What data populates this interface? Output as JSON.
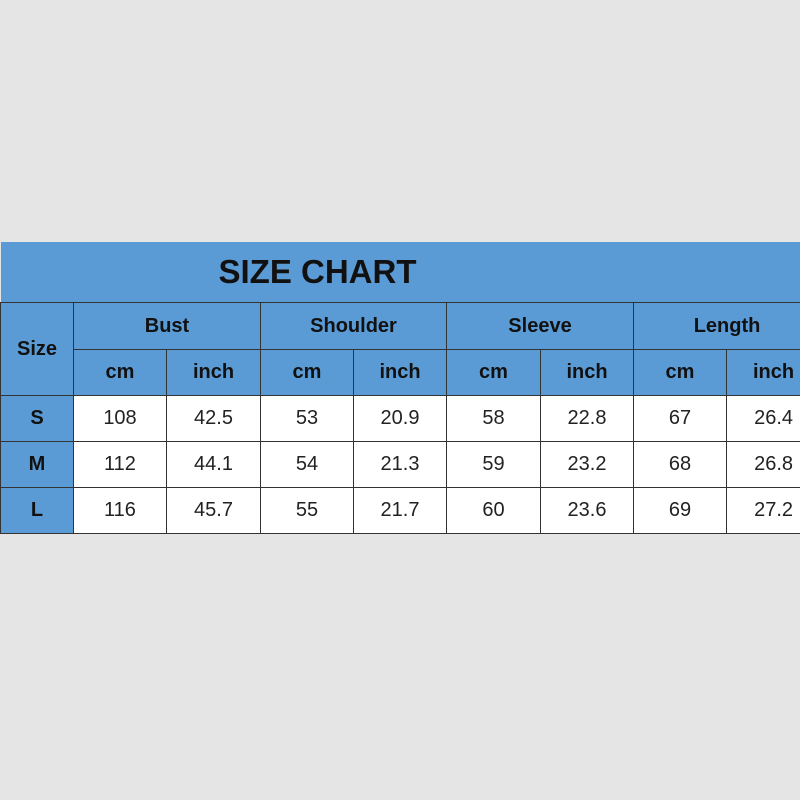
{
  "title": "SIZE CHART",
  "size_header": "Size",
  "groups": [
    "Bust",
    "Shoulder",
    "Sleeve",
    "Length"
  ],
  "units": [
    "cm",
    "inch"
  ],
  "rows": [
    {
      "size": "S",
      "values": [
        "108",
        "42.5",
        "53",
        "20.9",
        "58",
        "22.8",
        "67",
        "26.4"
      ]
    },
    {
      "size": "M",
      "values": [
        "112",
        "44.1",
        "54",
        "21.3",
        "59",
        "23.2",
        "68",
        "26.8"
      ]
    },
    {
      "size": "L",
      "values": [
        "116",
        "45.7",
        "55",
        "21.7",
        "60",
        "23.6",
        "69",
        "27.2"
      ]
    }
  ],
  "colors": {
    "header": "#5b9bd5",
    "background": "#e5e5e5"
  }
}
